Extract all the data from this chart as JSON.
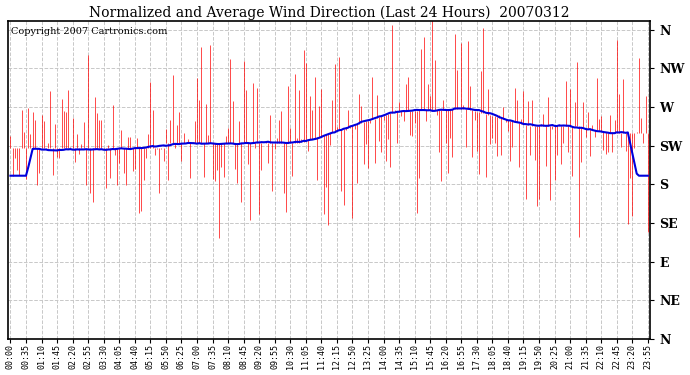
{
  "title": "Normalized and Average Wind Direction (Last 24 Hours)  20070312",
  "copyright": "Copyright 2007 Cartronics.com",
  "background_color": "#ffffff",
  "plot_bg_color": "#ffffff",
  "grid_color": "#c8c8c8",
  "red_color": "#ff0000",
  "blue_color": "#0000dd",
  "ytick_labels": [
    "N",
    "NW",
    "W",
    "SW",
    "S",
    "SE",
    "E",
    "NE",
    "N"
  ],
  "ytick_values": [
    360,
    315,
    270,
    225,
    180,
    135,
    90,
    45,
    0
  ],
  "ylim": [
    0,
    370
  ],
  "n_points": 288,
  "seed": 42,
  "tick_every": 7,
  "figsize": [
    6.9,
    3.75
  ],
  "dpi": 100
}
